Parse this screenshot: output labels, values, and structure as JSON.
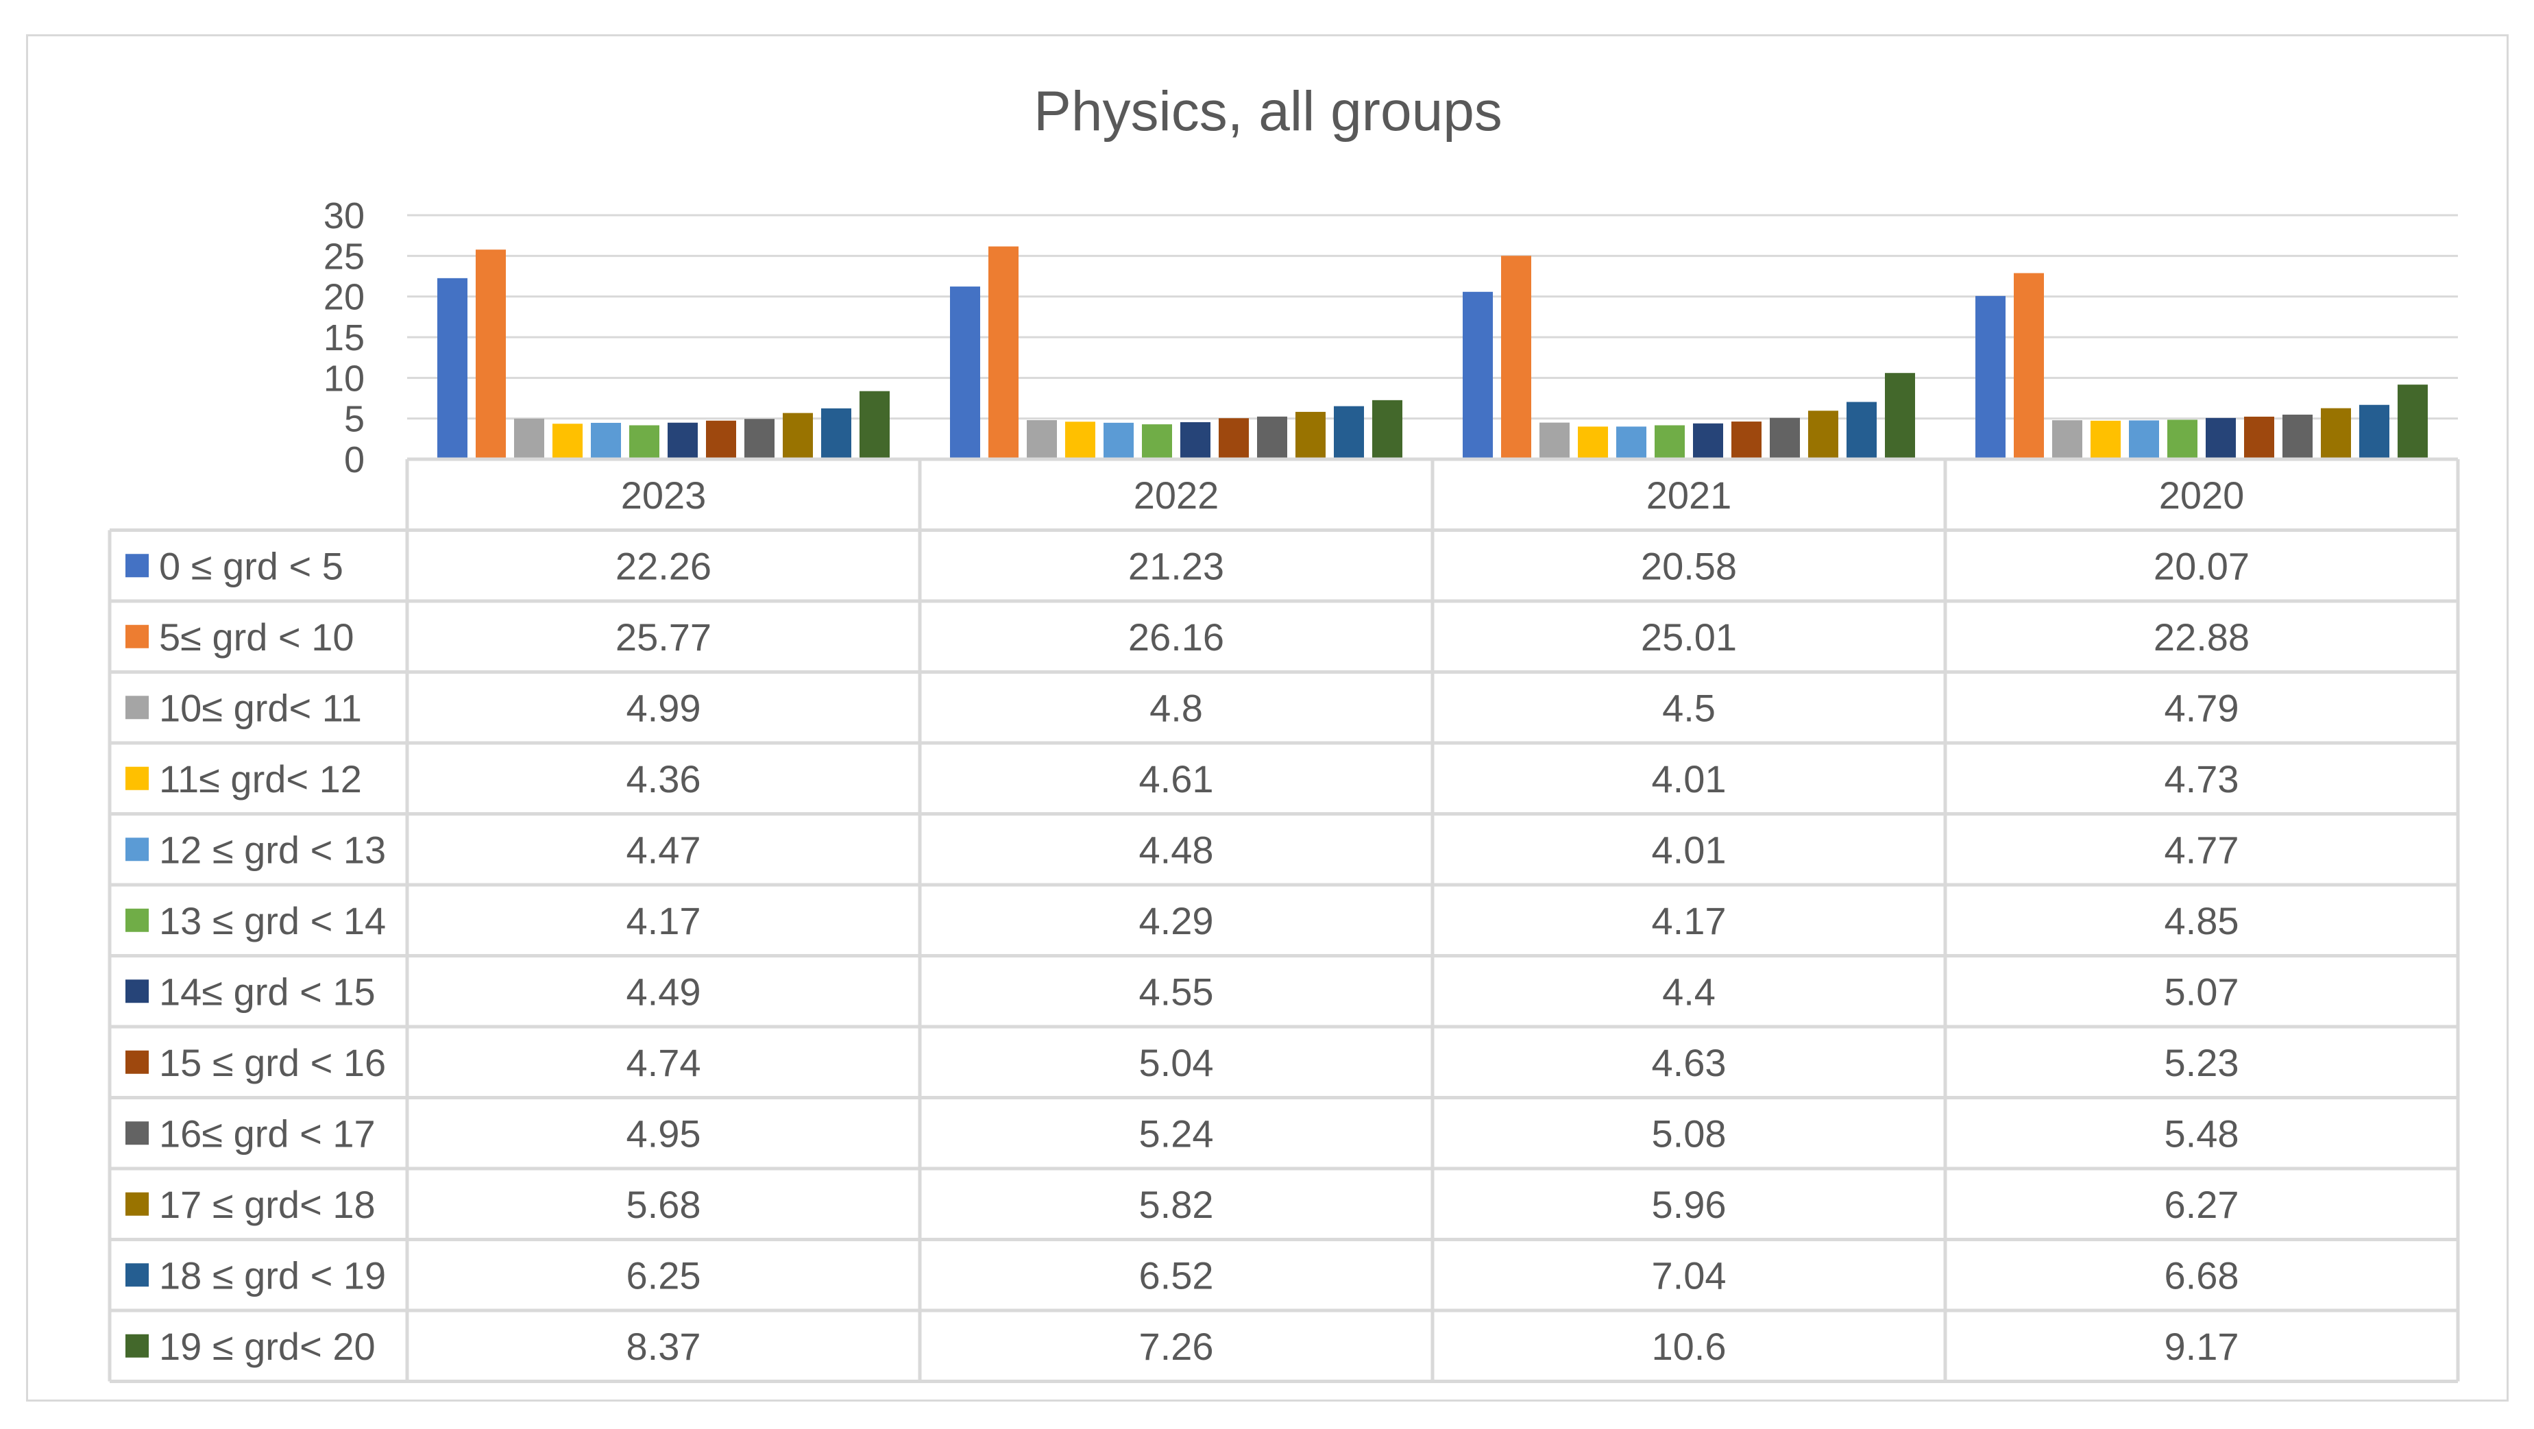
{
  "chart_data": {
    "type": "bar",
    "title": "Physics, all groups",
    "categories": [
      "2023",
      "2022",
      "2021",
      "2020"
    ],
    "ylim": [
      0,
      30
    ],
    "yticks": [
      "0",
      "5",
      "10",
      "15",
      "20",
      "25",
      "30"
    ],
    "grid": true,
    "legend": "data-table",
    "series": [
      {
        "name": "0 ≤ grd < 5",
        "color": "#4472c4",
        "values": [
          22.26,
          21.23,
          20.58,
          20.07
        ],
        "labels": [
          "22.26",
          "21.23",
          "20.58",
          "20.07"
        ]
      },
      {
        "name": "5≤ grd < 10",
        "color": "#ed7d31",
        "values": [
          25.77,
          26.16,
          25.01,
          22.88
        ],
        "labels": [
          "25.77",
          "26.16",
          "25.01",
          "22.88"
        ]
      },
      {
        "name": "10≤ grd< 11",
        "color": "#a5a5a5",
        "values": [
          4.99,
          4.8,
          4.5,
          4.79
        ],
        "labels": [
          "4.99",
          "4.8",
          "4.5",
          "4.79"
        ]
      },
      {
        "name": "11≤ grd< 12",
        "color": "#ffc000",
        "values": [
          4.36,
          4.61,
          4.01,
          4.73
        ],
        "labels": [
          "4.36",
          "4.61",
          "4.01",
          "4.73"
        ]
      },
      {
        "name": "12 ≤ grd < 13",
        "color": "#5b9bd5",
        "values": [
          4.47,
          4.48,
          4.01,
          4.77
        ],
        "labels": [
          "4.47",
          "4.48",
          "4.01",
          "4.77"
        ]
      },
      {
        "name": "13 ≤ grd < 14",
        "color": "#70ad47",
        "values": [
          4.17,
          4.29,
          4.17,
          4.85
        ],
        "labels": [
          "4.17",
          "4.29",
          "4.17",
          "4.85"
        ]
      },
      {
        "name": "14≤ grd < 15",
        "color": "#264478",
        "values": [
          4.49,
          4.55,
          4.4,
          5.07
        ],
        "labels": [
          "4.49",
          "4.55",
          "4.4",
          "5.07"
        ]
      },
      {
        "name": "15 ≤ grd < 16",
        "color": "#9e480e",
        "values": [
          4.74,
          5.04,
          4.63,
          5.23
        ],
        "labels": [
          "4.74",
          "5.04",
          "4.63",
          "5.23"
        ]
      },
      {
        "name": "16≤ grd < 17",
        "color": "#636363",
        "values": [
          4.95,
          5.24,
          5.08,
          5.48
        ],
        "labels": [
          "4.95",
          "5.24",
          "5.08",
          "5.48"
        ]
      },
      {
        "name": "17 ≤ grd< 18",
        "color": "#997300",
        "values": [
          5.68,
          5.82,
          5.96,
          6.27
        ],
        "labels": [
          "5.68",
          "5.82",
          "5.96",
          "6.27"
        ]
      },
      {
        "name": "18 ≤ grd < 19",
        "color": "#255e91",
        "values": [
          6.25,
          6.52,
          7.04,
          6.68
        ],
        "labels": [
          "6.25",
          "6.52",
          "7.04",
          "6.68"
        ]
      },
      {
        "name": "19 ≤ grd< 20",
        "color": "#43682b",
        "values": [
          8.37,
          7.26,
          10.6,
          9.17
        ],
        "labels": [
          "8.37",
          "7.26",
          "10.6",
          "9.17"
        ]
      }
    ]
  }
}
